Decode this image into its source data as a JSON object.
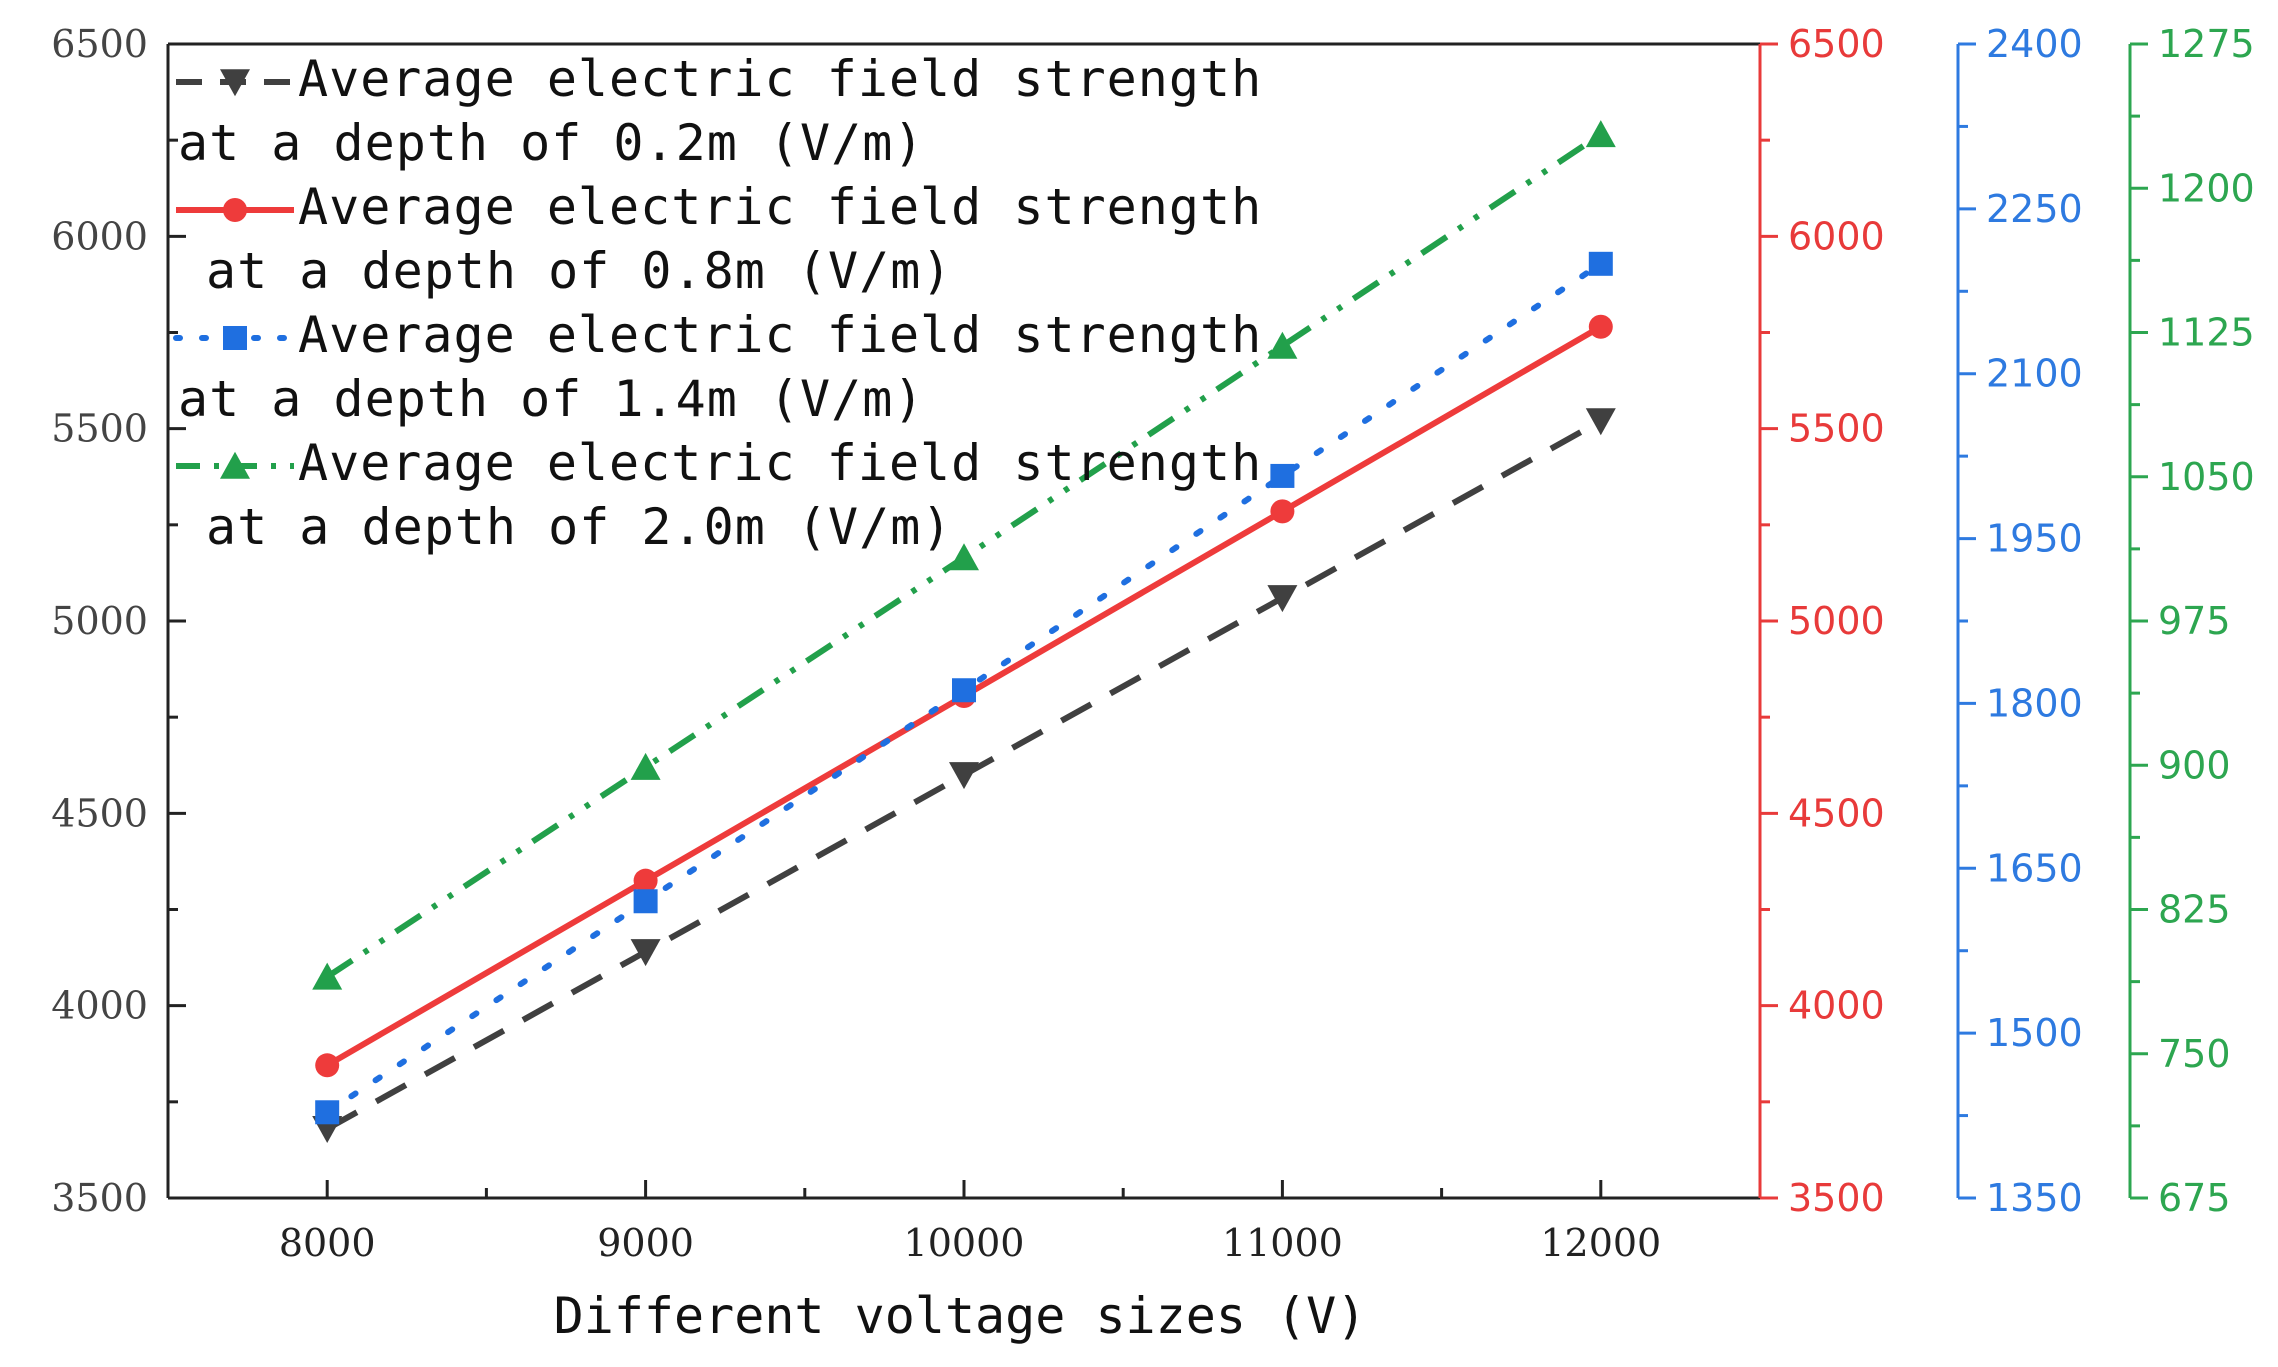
{
  "chart_data": {
    "type": "line",
    "xlabel": "Different voltage sizes (V)",
    "x": [
      8000,
      9000,
      10000,
      11000,
      12000
    ],
    "xlim": [
      7500,
      12500
    ],
    "x_ticks": [
      8000,
      9000,
      10000,
      11000,
      12000
    ],
    "grid": false,
    "legend_position": "top-left",
    "axes": [
      {
        "id": "y1",
        "side": "left",
        "color": "#404040",
        "ylim": [
          3500,
          6500
        ],
        "ticks": [
          3500,
          4000,
          4500,
          5000,
          5500,
          6000,
          6500
        ]
      },
      {
        "id": "y2",
        "side": "right",
        "color": "#e83a3a",
        "ylim": [
          3500,
          6500
        ],
        "ticks": [
          3500,
          4000,
          4500,
          5000,
          5500,
          6000,
          6500
        ]
      },
      {
        "id": "y3",
        "side": "right-offset-1",
        "color": "#2e7ae0",
        "ylim": [
          1350,
          2400
        ],
        "ticks": [
          1350,
          1500,
          1650,
          1800,
          1950,
          2100,
          2250,
          2400
        ]
      },
      {
        "id": "y4",
        "side": "right-offset-2",
        "color": "#2da650",
        "ylim": [
          675,
          1275
        ],
        "ticks": [
          675,
          750,
          825,
          900,
          975,
          1050,
          1125,
          1200,
          1275
        ]
      }
    ],
    "series": [
      {
        "name_line1": "Average electric field strength",
        "name_line2": "at a depth of 0.2m (V/m)",
        "axis": "y1",
        "color": "#404040",
        "style": "dash",
        "marker": "triangle-down",
        "values": [
          3680,
          4140,
          4600,
          5060,
          5520
        ]
      },
      {
        "name_line1": "Average electric field strength",
        "name_line2": "at a depth of 0.8m (V/m)",
        "axis": "y2",
        "color": "#ee3b3b",
        "style": "solid",
        "marker": "circle",
        "values": [
          3845,
          4325,
          4805,
          5285,
          5765
        ]
      },
      {
        "name_line1": "Average electric field strength",
        "name_line2": "at a depth of 1.4m (V/m)",
        "axis": "y3",
        "color": "#1f6fe0",
        "style": "dot",
        "marker": "square",
        "values": [
          1428,
          1620,
          1812,
          2007,
          2200
        ]
      },
      {
        "name_line1": "Average electric field strength",
        "name_line2": "at a depth of 2.0m (V/m)",
        "axis": "y4",
        "color": "#22a04b",
        "style": "dash-dot-dot",
        "marker": "triangle-up",
        "values": [
          790,
          899,
          1008,
          1118,
          1228
        ]
      }
    ]
  }
}
